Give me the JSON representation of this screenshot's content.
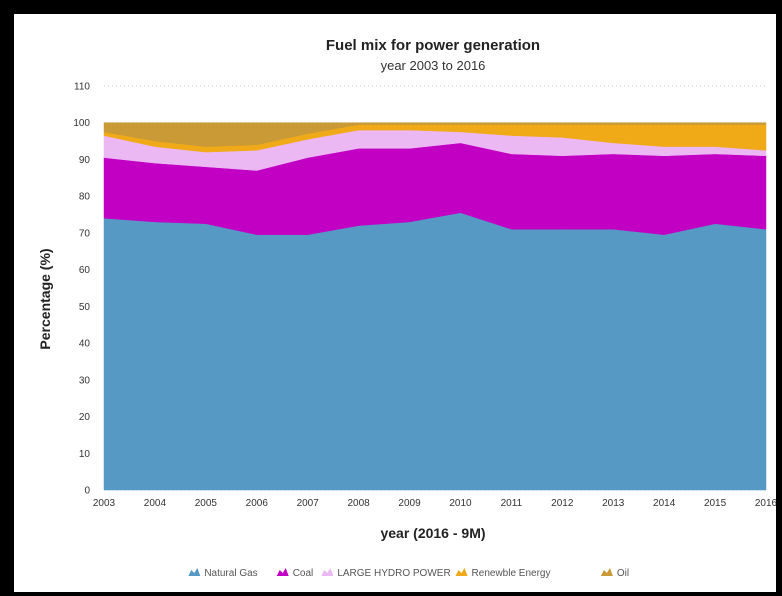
{
  "chart_data": {
    "type": "area",
    "stacked": true,
    "title": "Fuel mix for power generation",
    "subtitle": "year 2003 to 2016",
    "xlabel": "year (2016 - 9M)",
    "ylabel": "Percentage (%)",
    "ylim": [
      0,
      110
    ],
    "yticks": [
      0,
      10,
      20,
      30,
      40,
      50,
      60,
      70,
      80,
      90,
      100,
      110
    ],
    "grid": true,
    "legend_position": "bottom",
    "categories": [
      "2003",
      "2004",
      "2005",
      "2006",
      "2007",
      "2008",
      "2009",
      "2010",
      "2011",
      "2012",
      "2013",
      "2014",
      "2015",
      "2016"
    ],
    "series": [
      {
        "name": "Natural Gas",
        "color": "#5599c4",
        "values": [
          74,
          73,
          72.5,
          69.5,
          69.5,
          72,
          73,
          75.5,
          71,
          71,
          71,
          69.5,
          72.5,
          71
        ]
      },
      {
        "name": "Coal",
        "color": "#c200c4",
        "values": [
          16.5,
          16,
          15.5,
          17.5,
          21,
          21,
          20,
          19,
          20.5,
          20,
          20.5,
          21.5,
          19,
          20
        ]
      },
      {
        "name": "LARGE HYDRO POWER",
        "color": "#ecb8f4",
        "values": [
          6,
          4.5,
          4,
          5.5,
          5,
          5,
          5,
          3,
          5,
          5,
          3,
          2.5,
          2,
          1.5
        ]
      },
      {
        "name": "Renewble Energy",
        "color": "#f0aa18",
        "values": [
          1,
          1.5,
          1.5,
          1.5,
          1.5,
          1.5,
          1.5,
          2,
          3,
          3.5,
          5,
          6,
          6,
          7
        ]
      },
      {
        "name": "Oil",
        "color": "#c99a36",
        "values": [
          2.5,
          5,
          6.5,
          6,
          3,
          0.5,
          0.5,
          0.5,
          0.5,
          0.5,
          0.5,
          0.5,
          0.5,
          0.5
        ]
      }
    ]
  }
}
